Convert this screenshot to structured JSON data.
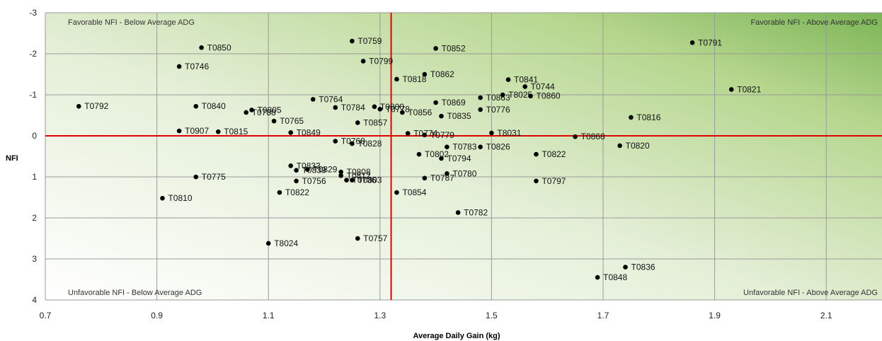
{
  "chart_data": {
    "type": "scatter",
    "title": "",
    "xlabel": "Average Daily Gain (kg)",
    "ylabel": "NFI",
    "xlim": [
      0.7,
      2.2
    ],
    "ylim": [
      -3,
      4
    ],
    "y_axis_inverted": true,
    "x_ticks": [
      "0.7",
      "0.9",
      "1.1",
      "1.3",
      "1.5",
      "1.7",
      "1.9",
      "2.1"
    ],
    "y_ticks": [
      "-3",
      "-2",
      "-1",
      "0",
      "1",
      "2",
      "3",
      "4"
    ],
    "grid": true,
    "reference_lines": {
      "x": 1.32,
      "y": 0,
      "color": "#e00000"
    },
    "background": "green gradient, darkest at top-right",
    "quadrant_labels": {
      "top_left": "Favorable NFI - Below Average ADG",
      "top_right": "Favorable NFI - Above Average ADG",
      "bottom_left": "Unfavorable NFI - Below Average ADG",
      "bottom_right": "Unfavorable NFI - Above Average ADG"
    },
    "points": [
      {
        "label": "T0792",
        "x": 0.76,
        "y": -0.72
      },
      {
        "label": "T0810",
        "x": 0.91,
        "y": 1.52
      },
      {
        "label": "T0746",
        "x": 0.94,
        "y": -1.69
      },
      {
        "label": "T0907",
        "x": 0.94,
        "y": -0.12
      },
      {
        "label": "T0840",
        "x": 0.97,
        "y": -0.72
      },
      {
        "label": "T0775",
        "x": 0.97,
        "y": 1.0
      },
      {
        "label": "T0850",
        "x": 0.98,
        "y": -2.15
      },
      {
        "label": "T0815",
        "x": 1.01,
        "y": -0.1
      },
      {
        "label": "T0788",
        "x": 1.06,
        "y": -0.57
      },
      {
        "label": "T0805",
        "x": 1.07,
        "y": -0.63
      },
      {
        "label": "T8024",
        "x": 1.1,
        "y": 2.62
      },
      {
        "label": "T0765",
        "x": 1.11,
        "y": -0.36
      },
      {
        "label": "T0822",
        "x": 1.12,
        "y": 1.38
      },
      {
        "label": "T0833",
        "x": 1.14,
        "y": 0.73
      },
      {
        "label": "T0849",
        "x": 1.14,
        "y": -0.08
      },
      {
        "label": "T0839",
        "x": 1.15,
        "y": 0.84
      },
      {
        "label": "T0756",
        "x": 1.15,
        "y": 1.1
      },
      {
        "label": "T0829",
        "x": 1.17,
        "y": 0.82
      },
      {
        "label": "T0764",
        "x": 1.18,
        "y": -0.89
      },
      {
        "label": "T0768",
        "x": 1.22,
        "y": 0.13
      },
      {
        "label": "T0784",
        "x": 1.22,
        "y": -0.69
      },
      {
        "label": "T0808",
        "x": 1.23,
        "y": 0.88
      },
      {
        "label": "T0812",
        "x": 1.23,
        "y": 0.97
      },
      {
        "label": "T0736",
        "x": 1.24,
        "y": 1.08
      },
      {
        "label": "T0828",
        "x": 1.25,
        "y": 0.19
      },
      {
        "label": "T0759",
        "x": 1.25,
        "y": -2.31
      },
      {
        "label": "T0803",
        "x": 1.25,
        "y": 1.08
      },
      {
        "label": "T0857",
        "x": 1.26,
        "y": -0.32
      },
      {
        "label": "T0757",
        "x": 1.26,
        "y": 2.5
      },
      {
        "label": "T0799",
        "x": 1.27,
        "y": -1.82
      },
      {
        "label": "T0800",
        "x": 1.29,
        "y": -0.71
      },
      {
        "label": "T0778",
        "x": 1.3,
        "y": -0.65
      },
      {
        "label": "T0818",
        "x": 1.33,
        "y": -1.38
      },
      {
        "label": "T0854",
        "x": 1.33,
        "y": 1.38
      },
      {
        "label": "T0856",
        "x": 1.34,
        "y": -0.57
      },
      {
        "label": "T0774",
        "x": 1.35,
        "y": -0.06
      },
      {
        "label": "T0802",
        "x": 1.37,
        "y": 0.45
      },
      {
        "label": "T0862",
        "x": 1.38,
        "y": -1.5
      },
      {
        "label": "T0779",
        "x": 1.38,
        "y": -0.02
      },
      {
        "label": "T0787",
        "x": 1.38,
        "y": 1.03
      },
      {
        "label": "T0852",
        "x": 1.4,
        "y": -2.13
      },
      {
        "label": "T0869",
        "x": 1.4,
        "y": -0.81
      },
      {
        "label": "T0835",
        "x": 1.41,
        "y": -0.48
      },
      {
        "label": "T0794",
        "x": 1.41,
        "y": 0.55
      },
      {
        "label": "T0783",
        "x": 1.42,
        "y": 0.27
      },
      {
        "label": "T0780",
        "x": 1.42,
        "y": 0.92
      },
      {
        "label": "T0782",
        "x": 1.44,
        "y": 1.87
      },
      {
        "label": "T0863",
        "x": 1.48,
        "y": -0.93
      },
      {
        "label": "T0776",
        "x": 1.48,
        "y": -0.64
      },
      {
        "label": "T0826",
        "x": 1.48,
        "y": 0.27
      },
      {
        "label": "T8031",
        "x": 1.5,
        "y": -0.07
      },
      {
        "label": "T8025",
        "x": 1.52,
        "y": -1.0
      },
      {
        "label": "T0841",
        "x": 1.53,
        "y": -1.37
      },
      {
        "label": "T0744",
        "x": 1.56,
        "y": -1.2
      },
      {
        "label": "T0860",
        "x": 1.57,
        "y": -0.97
      },
      {
        "label": "T0822",
        "x": 1.58,
        "y": 0.45
      },
      {
        "label": "T0797",
        "x": 1.58,
        "y": 1.1
      },
      {
        "label": "T0868",
        "x": 1.65,
        "y": 0.02
      },
      {
        "label": "T0848",
        "x": 1.69,
        "y": 3.45
      },
      {
        "label": "T0820",
        "x": 1.73,
        "y": 0.24
      },
      {
        "label": "T0836",
        "x": 1.74,
        "y": 3.2
      },
      {
        "label": "T0816",
        "x": 1.75,
        "y": -0.45
      },
      {
        "label": "T0791",
        "x": 1.86,
        "y": -2.27
      },
      {
        "label": "T0821",
        "x": 1.93,
        "y": -1.13
      }
    ]
  }
}
